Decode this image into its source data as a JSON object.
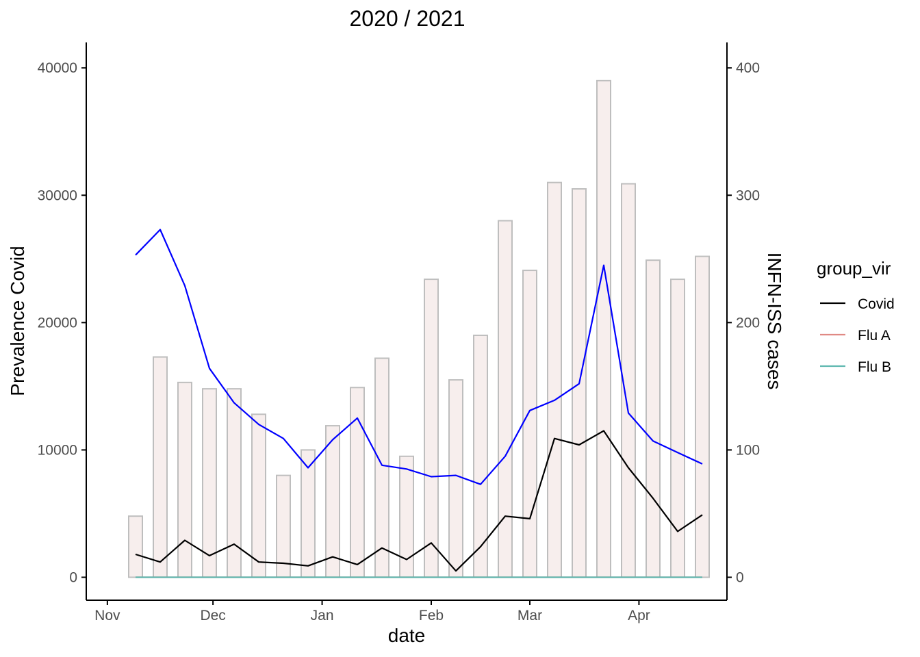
{
  "chart_data": {
    "type": "bar",
    "title": "2020 / 2021",
    "xlabel": "date",
    "ylabel_left": "Prevalence Covid",
    "ylabel_right": "INFN-ISS cases",
    "colors": {
      "bar_fill": "#f7eeed",
      "bar_stroke": "#bebebe",
      "prevalence_line": "#0000ff",
      "left_axis_title": "#0000ff",
      "covid": "#000000",
      "flu_a": "#e08a84",
      "flu_b": "#5fb8b0"
    },
    "x_ticks": [
      "Nov",
      "Dec",
      "Jan",
      "Feb",
      "Mar",
      "Apr"
    ],
    "x_tick_dates": [
      "2020-11-01",
      "2020-12-01",
      "2021-01-01",
      "2021-02-01",
      "2021-03-01",
      "2021-04-01"
    ],
    "xlim": [
      "2020-10-26",
      "2021-04-26"
    ],
    "y_left_ticks": [
      "0",
      "10000",
      "20000",
      "30000",
      "40000"
    ],
    "y_left_lim": [
      -1800,
      42000
    ],
    "y_right_ticks": [
      "0",
      "100",
      "200",
      "300",
      "400"
    ],
    "y_right_lim": [
      -18,
      420
    ],
    "dates": [
      "2020-11-09",
      "2020-11-16",
      "2020-11-23",
      "2020-11-30",
      "2020-12-07",
      "2020-12-14",
      "2020-12-21",
      "2020-12-28",
      "2021-01-04",
      "2021-01-11",
      "2021-01-18",
      "2021-01-25",
      "2021-02-01",
      "2021-02-08",
      "2021-02-15",
      "2021-02-22",
      "2021-03-01",
      "2021-03-08",
      "2021-03-15",
      "2021-03-22",
      "2021-03-29",
      "2021-04-05",
      "2021-04-12",
      "2021-04-19"
    ],
    "bar_series": {
      "name": "INFN-ISS cases",
      "axis": "left",
      "values": [
        4800,
        17300,
        15300,
        14800,
        14800,
        12800,
        8000,
        10000,
        11900,
        14900,
        17200,
        9500,
        23400,
        15500,
        19000,
        28000,
        24100,
        31000,
        30500,
        39000,
        30900,
        24900,
        23400,
        25200
      ]
    },
    "prevalence_series": {
      "name": "Prevalence Covid",
      "axis": "left",
      "values": [
        25300,
        27300,
        22900,
        16400,
        13700,
        12000,
        10900,
        8600,
        10800,
        12500,
        8800,
        8500,
        7900,
        8000,
        7300,
        9500,
        13100,
        13900,
        15200,
        24500,
        12900,
        10700,
        9800,
        8900
      ]
    },
    "series": [
      {
        "name": "Covid",
        "axis": "right",
        "values": [
          18,
          12,
          29,
          17,
          26,
          12,
          11,
          9,
          16,
          10,
          23,
          14,
          27,
          5,
          24,
          48,
          46,
          109,
          104,
          115,
          86,
          62,
          36,
          49
        ]
      },
      {
        "name": "Flu A",
        "axis": "right",
        "values": [
          0,
          0,
          0,
          0,
          0,
          0,
          0,
          0,
          0,
          0,
          0,
          0,
          0,
          0,
          0,
          0,
          0,
          0,
          0,
          0,
          0,
          0,
          0,
          0
        ]
      },
      {
        "name": "Flu B",
        "axis": "right",
        "values": [
          0,
          0,
          0,
          0,
          0,
          0,
          0,
          0,
          0,
          0,
          0,
          0,
          0,
          0,
          0,
          0,
          0,
          0,
          0,
          0,
          0,
          0,
          0,
          0
        ]
      }
    ],
    "legend": {
      "title": "group_vir",
      "placement": "right",
      "items": [
        "Covid",
        "Flu A",
        "Flu B"
      ]
    },
    "grid": false
  }
}
